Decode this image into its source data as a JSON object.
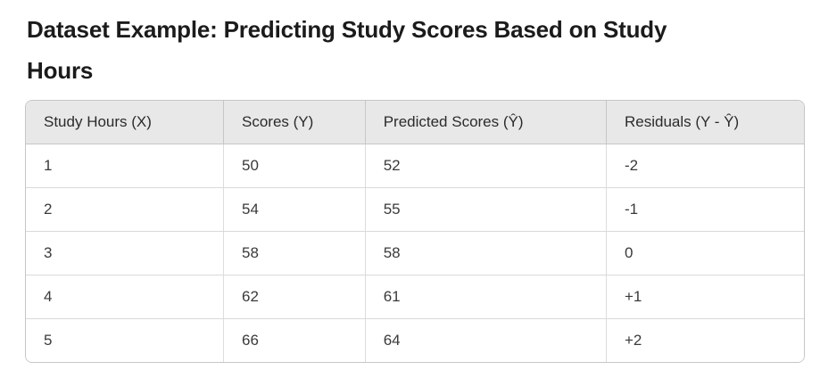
{
  "page": {
    "title": "Dataset Example: Predicting Study Scores Based on Study Hours",
    "title_lines": [
      "Dataset Example: Predicting Study Scores Based on Study",
      "Hours"
    ]
  },
  "table": {
    "headers": [
      "Study Hours (X)",
      "Scores (Y)",
      "Predicted Scores (Ŷ)",
      "Residuals (Y - Ŷ)"
    ],
    "rows": [
      [
        "1",
        "50",
        "52",
        "-2"
      ],
      [
        "2",
        "54",
        "55",
        "-1"
      ],
      [
        "3",
        "58",
        "58",
        "0"
      ],
      [
        "4",
        "62",
        "61",
        "+1"
      ],
      [
        "5",
        "66",
        "64",
        "+2"
      ]
    ]
  },
  "colors": {
    "header_bg": "#e8e8e8",
    "outer_border": "#c6c6c6",
    "row_divider": "#d9d9d9",
    "column_divider": "#dcdcdc",
    "title_text": "#1b1b1b",
    "cell_text": "#3a3a3a"
  }
}
